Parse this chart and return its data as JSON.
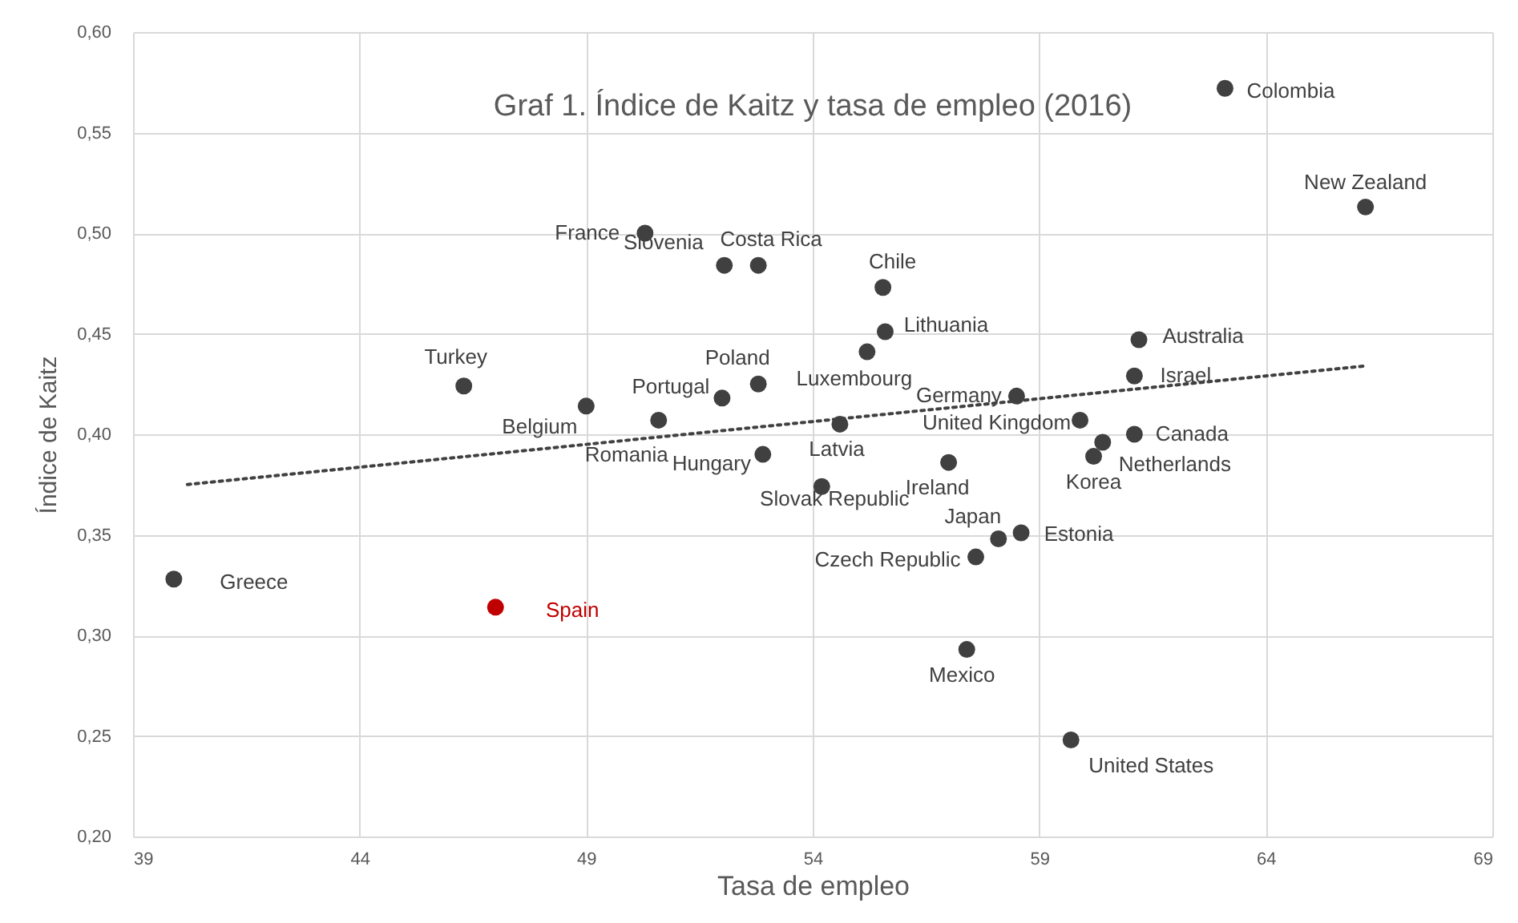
{
  "chart_data": {
    "type": "scatter",
    "title": "Graf 1. Índice de Kaitz y tasa de empleo (2016)",
    "xlabel": "Tasa de empleo",
    "ylabel": "Índice de Kaitz",
    "xlim": [
      39,
      69
    ],
    "xticks": [
      39,
      44,
      49,
      54,
      59,
      64,
      69
    ],
    "ylim": [
      0.2,
      0.6
    ],
    "yticks": [
      {
        "value": 0.2,
        "label": "0,20"
      },
      {
        "value": 0.25,
        "label": "0,25"
      },
      {
        "value": 0.3,
        "label": "0,30"
      },
      {
        "value": 0.35,
        "label": "0,35"
      },
      {
        "value": 0.4,
        "label": "0,40"
      },
      {
        "value": 0.45,
        "label": "0,45"
      },
      {
        "value": 0.5,
        "label": "0,50"
      },
      {
        "value": 0.55,
        "label": "0,55"
      },
      {
        "value": 0.6,
        "label": "0,60"
      }
    ],
    "grid": true,
    "marker": "circle",
    "series": [
      {
        "name": "Colombia",
        "color": "#404040",
        "x": [
          63.1
        ],
        "values": [
          0.572
        ]
      },
      {
        "name": "New Zealand",
        "color": "#404040",
        "x": [
          66.2
        ],
        "values": [
          0.513
        ]
      },
      {
        "name": "France",
        "color": "#404040",
        "x": [
          50.3
        ],
        "values": [
          0.5
        ]
      },
      {
        "name": "Slovenia",
        "color": "#404040",
        "x": [
          52.05
        ],
        "values": [
          0.484
        ]
      },
      {
        "name": "Costa Rica",
        "color": "#404040",
        "x": [
          52.8
        ],
        "values": [
          0.484
        ]
      },
      {
        "name": "Chile",
        "color": "#404040",
        "x": [
          55.55
        ],
        "values": [
          0.473
        ]
      },
      {
        "name": "Lithuania",
        "color": "#404040",
        "x": [
          55.6
        ],
        "values": [
          0.451
        ]
      },
      {
        "name": "Luxembourg",
        "color": "#404040",
        "x": [
          55.2
        ],
        "values": [
          0.441
        ]
      },
      {
        "name": "Poland",
        "color": "#404040",
        "x": [
          52.8
        ],
        "values": [
          0.425
        ]
      },
      {
        "name": "Portugal",
        "color": "#404040",
        "x": [
          52.0
        ],
        "values": [
          0.418
        ]
      },
      {
        "name": "Turkey",
        "color": "#404040",
        "x": [
          46.3
        ],
        "values": [
          0.424
        ]
      },
      {
        "name": "Belgium",
        "color": "#404040",
        "x": [
          49.0
        ],
        "values": [
          0.414
        ]
      },
      {
        "name": "Romania",
        "color": "#404040",
        "x": [
          50.6
        ],
        "values": [
          0.407
        ]
      },
      {
        "name": "Hungary",
        "color": "#404040",
        "x": [
          52.9
        ],
        "values": [
          0.39
        ]
      },
      {
        "name": "Latvia",
        "color": "#404040",
        "x": [
          54.6
        ],
        "values": [
          0.405
        ]
      },
      {
        "name": "Slovak Republic",
        "color": "#404040",
        "x": [
          54.2
        ],
        "values": [
          0.374
        ]
      },
      {
        "name": "Ireland",
        "color": "#404040",
        "x": [
          57.0
        ],
        "values": [
          0.386
        ]
      },
      {
        "name": "Germany",
        "color": "#404040",
        "x": [
          58.5
        ],
        "values": [
          0.419
        ]
      },
      {
        "name": "Japan",
        "color": "#404040",
        "x": [
          58.1
        ],
        "values": [
          0.348
        ]
      },
      {
        "name": "Estonia",
        "color": "#404040",
        "x": [
          58.6
        ],
        "values": [
          0.351
        ]
      },
      {
        "name": "Czech Republic",
        "color": "#404040",
        "x": [
          57.6
        ],
        "values": [
          0.339
        ]
      },
      {
        "name": "Mexico",
        "color": "#404040",
        "x": [
          57.4
        ],
        "values": [
          0.293
        ]
      },
      {
        "name": "United States",
        "color": "#404040",
        "x": [
          59.7
        ],
        "values": [
          0.248
        ]
      },
      {
        "name": "United Kingdom",
        "color": "#404040",
        "x": [
          59.9
        ],
        "values": [
          0.407
        ]
      },
      {
        "name": "Australia",
        "color": "#404040",
        "x": [
          61.2
        ],
        "values": [
          0.447
        ]
      },
      {
        "name": "Israel",
        "color": "#404040",
        "x": [
          61.1
        ],
        "values": [
          0.429
        ]
      },
      {
        "name": "Canada",
        "color": "#404040",
        "x": [
          61.1
        ],
        "values": [
          0.4
        ]
      },
      {
        "name": "Netherlands",
        "color": "#404040",
        "x": [
          60.4
        ],
        "values": [
          0.396
        ]
      },
      {
        "name": "Korea",
        "color": "#404040",
        "x": [
          60.2
        ],
        "values": [
          0.389
        ]
      },
      {
        "name": "Greece",
        "color": "#404040",
        "x": [
          39.9
        ],
        "values": [
          0.328
        ]
      },
      {
        "name": "Spain",
        "color": "#c00000",
        "x": [
          47.0
        ],
        "values": [
          0.314
        ]
      },
      {
        "type": "line",
        "line_style": "dotted",
        "marker": "none",
        "color": "#404040",
        "x": [
          40.2,
          66.2
        ],
        "values": [
          0.375,
          0.434
        ]
      }
    ]
  }
}
